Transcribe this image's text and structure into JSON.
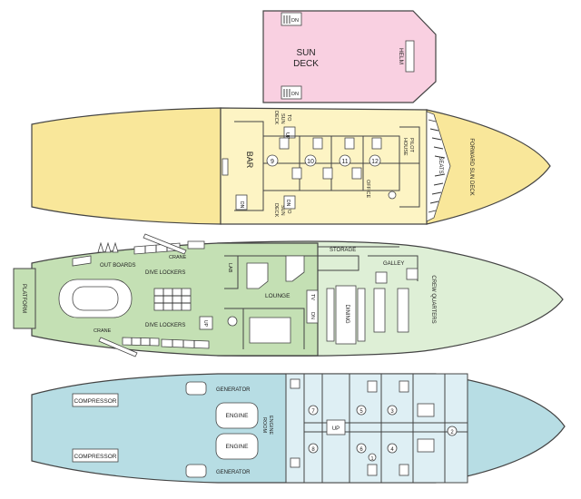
{
  "colors": {
    "sun_deck": "#f9d0e1",
    "main_deck": "#f9e79a",
    "main_deck_aft": "#fdf4c4",
    "lower_deck_aft": "#c4e0b4",
    "lower_deck_fwd": "#deefd6",
    "bottom_deck": "#b7dde4",
    "cabins": "#deeff4"
  },
  "sun_deck": {
    "title_line1": "SUN",
    "title_line2": "DECK",
    "helm": "HELM",
    "dn_top": "DN",
    "dn_bottom": "DN"
  },
  "main_deck": {
    "bar": "BAR",
    "to_sun_deck_top": [
      "TO",
      "SUN",
      "DECK"
    ],
    "to_sun_deck_bottom": [
      "TO",
      "SUN",
      "DECK"
    ],
    "up": "UP",
    "dn_top": "DN",
    "dn_bottom": "DN",
    "pilot_house": [
      "PILOT",
      "HOUSE"
    ],
    "office": "OFFICE",
    "seats": "SEATS",
    "forward_sun_deck": "FORWARD SUN DECK",
    "cabin_numbers": [
      "9",
      "10",
      "11",
      "12"
    ]
  },
  "lower_deck": {
    "platform": "PLATFORM",
    "out_boards": "OUT BOARDS",
    "crane_top": "CRANE",
    "crane_bottom": "CRANE",
    "dive_lockers_top": "DIVE LOCKERS",
    "dive_lockers_bottom": "DIVE LOCKERS",
    "lab": "LAB",
    "storage": "STORAGE",
    "galley": "GALLEY",
    "lounge": "LOUNGE",
    "dining": "DINING",
    "crew_quarters": "CREW QUARTERS",
    "up": "UP",
    "tv": "TV",
    "dn": "DN"
  },
  "bottom_deck": {
    "compressor_top": "COMPRESSOR",
    "compressor_bottom": "COMPRESSOR",
    "generator_top": "GENERATOR",
    "generator_bottom": "GENERATOR",
    "engine_top": "ENGINE",
    "engine_bottom": "ENGINE",
    "engine_room": [
      "ENGINE",
      "ROOM"
    ],
    "up": "UP",
    "cabin_numbers": [
      "7",
      "5",
      "3",
      "8",
      "6",
      "4",
      "2",
      "1"
    ]
  }
}
